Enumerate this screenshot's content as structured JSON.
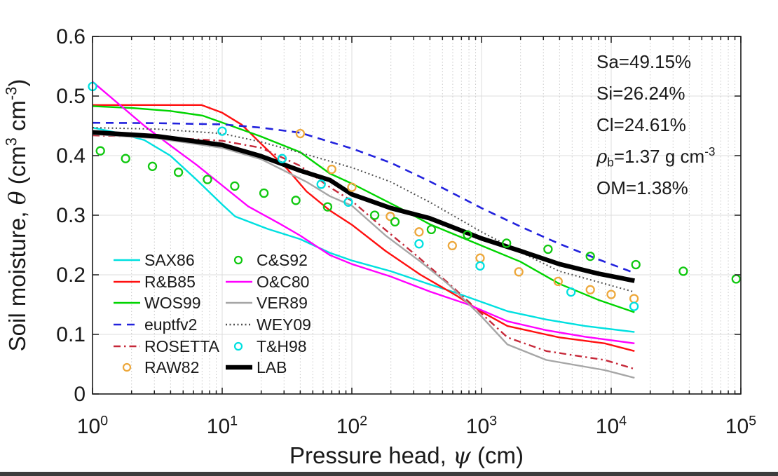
{
  "chart_data": {
    "type": "line",
    "title": "",
    "xlabel_segments": [
      {
        "t": "Pressure head, "
      },
      {
        "t": "ψ",
        "i": true
      },
      {
        "t": " (cm)"
      }
    ],
    "ylabel_segments": [
      {
        "t": "Soil moisture, "
      },
      {
        "t": "θ",
        "i": true
      },
      {
        "t": " (cm"
      },
      {
        "t": "3",
        "sup": true
      },
      {
        "t": " cm"
      },
      {
        "t": "-3",
        "sup": true
      },
      {
        "t": ")"
      }
    ],
    "x_axis": {
      "scale": "log",
      "min": 1,
      "max": 100000,
      "tick_exponents": [
        0,
        1,
        2,
        3,
        4,
        5
      ],
      "tick_base": "10",
      "minor_ticks": [
        2,
        3,
        4,
        5,
        6,
        7,
        8,
        9
      ]
    },
    "y_axis": {
      "min": 0,
      "max": 0.6,
      "ticks": [
        "0",
        "0.1",
        "0.2",
        "0.3",
        "0.4",
        "0.5",
        "0.6"
      ]
    },
    "grid": {
      "major_color": "#dcdcdc",
      "minor_color": "#c9c9c9",
      "on": true
    },
    "frame_color": "#1a1a1a",
    "annotation": {
      "lines": [
        [
          {
            "t": "Sa=49.15%"
          }
        ],
        [
          {
            "t": "Si=26.24%"
          }
        ],
        [
          {
            "t": "Cl=24.61%"
          }
        ],
        [
          {
            "t": "ρ",
            "i": true
          },
          {
            "t": "b",
            "sub": true
          },
          {
            "t": "=1.37 g cm"
          },
          {
            "t": "-3",
            "sup": true
          }
        ],
        [
          {
            "t": "OM=1.38%"
          }
        ]
      ]
    },
    "series": [
      {
        "name": "SAX86",
        "color": "#00e0e0",
        "style": "solid",
        "width": 2.4,
        "points": [
          [
            0,
            0.447
          ],
          [
            0.2,
            0.438
          ],
          [
            0.4,
            0.426
          ],
          [
            0.6,
            0.4
          ],
          [
            0.8,
            0.36
          ],
          [
            1.0,
            0.318
          ],
          [
            1.1,
            0.298
          ],
          [
            1.35,
            0.277
          ],
          [
            1.6,
            0.26
          ],
          [
            1.83,
            0.237
          ],
          [
            2.0,
            0.224
          ],
          [
            2.3,
            0.206
          ],
          [
            2.6,
            0.184
          ],
          [
            2.8,
            0.17
          ],
          [
            3.2,
            0.139
          ],
          [
            3.5,
            0.125
          ],
          [
            3.8,
            0.114
          ],
          [
            4.18,
            0.104
          ]
        ]
      },
      {
        "name": "R&B85",
        "color": "#ff1010",
        "style": "solid",
        "width": 2.4,
        "points": [
          [
            0,
            0.485
          ],
          [
            0.84,
            0.485
          ],
          [
            1.0,
            0.472
          ],
          [
            1.15,
            0.452
          ],
          [
            1.3,
            0.42
          ],
          [
            1.5,
            0.378
          ],
          [
            1.65,
            0.34
          ],
          [
            1.83,
            0.308
          ],
          [
            2.0,
            0.284
          ],
          [
            2.26,
            0.24
          ],
          [
            2.53,
            0.2
          ],
          [
            2.8,
            0.166
          ],
          [
            3.0,
            0.138
          ],
          [
            3.2,
            0.114
          ],
          [
            3.6,
            0.095
          ],
          [
            3.95,
            0.085
          ],
          [
            4.18,
            0.072
          ]
        ]
      },
      {
        "name": "WOS99",
        "color": "#00d400",
        "style": "solid",
        "width": 2.4,
        "points": [
          [
            0,
            0.483
          ],
          [
            0.3,
            0.48
          ],
          [
            0.6,
            0.475
          ],
          [
            0.85,
            0.467
          ],
          [
            1.07,
            0.45
          ],
          [
            1.3,
            0.432
          ],
          [
            1.6,
            0.406
          ],
          [
            1.83,
            0.37
          ],
          [
            2.0,
            0.353
          ],
          [
            2.37,
            0.312
          ],
          [
            2.6,
            0.285
          ],
          [
            3.0,
            0.249
          ],
          [
            3.3,
            0.222
          ],
          [
            3.6,
            0.185
          ],
          [
            3.9,
            0.158
          ],
          [
            4.18,
            0.137
          ]
        ]
      },
      {
        "name": "euptfv2",
        "color": "#2222dd",
        "style": "dashed",
        "width": 2.6,
        "points": [
          [
            0,
            0.455
          ],
          [
            0.5,
            0.4545
          ],
          [
            1.0,
            0.4525
          ],
          [
            1.3,
            0.447
          ],
          [
            1.6,
            0.4385
          ],
          [
            2.0,
            0.412
          ],
          [
            2.3,
            0.388
          ],
          [
            2.6,
            0.357
          ],
          [
            3.0,
            0.312
          ],
          [
            3.3,
            0.281
          ],
          [
            3.6,
            0.252
          ],
          [
            3.9,
            0.226
          ],
          [
            4.18,
            0.203
          ]
        ]
      },
      {
        "name": "ROSETTA",
        "color": "#c62839",
        "style": "dashdot",
        "width": 2.4,
        "points": [
          [
            0,
            0.434
          ],
          [
            0.5,
            0.431
          ],
          [
            1.0,
            0.425
          ],
          [
            1.3,
            0.413
          ],
          [
            1.6,
            0.383
          ],
          [
            1.83,
            0.347
          ],
          [
            2.0,
            0.324
          ],
          [
            2.25,
            0.277
          ],
          [
            2.5,
            0.232
          ],
          [
            2.75,
            0.185
          ],
          [
            3.0,
            0.135
          ],
          [
            3.2,
            0.095
          ],
          [
            3.5,
            0.072
          ],
          [
            3.95,
            0.057
          ],
          [
            4.18,
            0.042
          ]
        ]
      },
      {
        "name": "O&C80",
        "color": "#ff00ff",
        "style": "solid",
        "width": 2.4,
        "points": [
          [
            0,
            0.524
          ],
          [
            0.2,
            0.487
          ],
          [
            0.4,
            0.45
          ],
          [
            0.6,
            0.417
          ],
          [
            0.8,
            0.385
          ],
          [
            1.0,
            0.35
          ],
          [
            1.2,
            0.315
          ],
          [
            1.45,
            0.285
          ],
          [
            1.6,
            0.266
          ],
          [
            1.83,
            0.233
          ],
          [
            2.0,
            0.218
          ],
          [
            2.3,
            0.197
          ],
          [
            2.6,
            0.172
          ],
          [
            2.9,
            0.15
          ],
          [
            3.2,
            0.122
          ],
          [
            3.5,
            0.107
          ],
          [
            3.8,
            0.096
          ],
          [
            4.18,
            0.085
          ]
        ]
      },
      {
        "name": "VER89",
        "color": "#a6a6a6",
        "style": "solid",
        "width": 2.4,
        "points": [
          [
            0,
            0.436
          ],
          [
            0.5,
            0.429
          ],
          [
            1.0,
            0.413
          ],
          [
            1.3,
            0.394
          ],
          [
            1.65,
            0.356
          ],
          [
            1.83,
            0.332
          ],
          [
            2.0,
            0.316
          ],
          [
            2.26,
            0.266
          ],
          [
            2.53,
            0.222
          ],
          [
            2.75,
            0.183
          ],
          [
            3.0,
            0.13
          ],
          [
            3.2,
            0.083
          ],
          [
            3.5,
            0.057
          ],
          [
            3.95,
            0.04
          ],
          [
            4.18,
            0.027
          ]
        ]
      },
      {
        "name": "WEY09",
        "color": "#4d4d4d",
        "style": "dotted",
        "width": 2.0,
        "points": [
          [
            0,
            0.447
          ],
          [
            0.5,
            0.4445
          ],
          [
            1.0,
            0.437
          ],
          [
            1.3,
            0.423
          ],
          [
            1.6,
            0.405
          ],
          [
            2.0,
            0.38
          ],
          [
            2.3,
            0.356
          ],
          [
            2.6,
            0.322
          ],
          [
            3.0,
            0.272
          ],
          [
            3.3,
            0.238
          ],
          [
            3.6,
            0.206
          ],
          [
            3.9,
            0.188
          ],
          [
            4.18,
            0.171
          ]
        ]
      },
      {
        "name": "LAB",
        "color": "#000000",
        "style": "solid",
        "width": 6.5,
        "points": [
          [
            0,
            0.439
          ],
          [
            0.5,
            0.4325
          ],
          [
            1.0,
            0.418
          ],
          [
            1.3,
            0.399
          ],
          [
            1.6,
            0.375
          ],
          [
            1.83,
            0.359
          ],
          [
            2.0,
            0.335
          ],
          [
            2.3,
            0.312
          ],
          [
            2.6,
            0.295
          ],
          [
            3.0,
            0.261
          ],
          [
            3.3,
            0.24
          ],
          [
            3.6,
            0.218
          ],
          [
            3.9,
            0.202
          ],
          [
            4.18,
            0.19
          ]
        ]
      }
    ],
    "marker_series": [
      {
        "name": "RAW82",
        "color": "#eda83c",
        "points": [
          [
            40,
            0.437
          ],
          [
            70,
            0.377
          ],
          [
            100,
            0.347
          ],
          [
            198,
            0.298
          ],
          [
            330,
            0.272
          ],
          [
            595,
            0.249
          ],
          [
            975,
            0.228
          ],
          [
            1940,
            0.205
          ],
          [
            3900,
            0.189
          ],
          [
            6900,
            0.175
          ],
          [
            10000,
            0.167
          ],
          [
            15000,
            0.16
          ]
        ]
      },
      {
        "name": "C&S92",
        "color": "#0fc80f",
        "points": [
          [
            1.15,
            0.408
          ],
          [
            1.8,
            0.395
          ],
          [
            2.9,
            0.382
          ],
          [
            4.6,
            0.372
          ],
          [
            7.7,
            0.36
          ],
          [
            12.5,
            0.349
          ],
          [
            21,
            0.337
          ],
          [
            37,
            0.325
          ],
          [
            65,
            0.314
          ],
          [
            150,
            0.3
          ],
          [
            215,
            0.289
          ],
          [
            410,
            0.276
          ],
          [
            780,
            0.267
          ],
          [
            1560,
            0.253
          ],
          [
            3260,
            0.243
          ],
          [
            6900,
            0.231
          ],
          [
            15500,
            0.217
          ],
          [
            36000,
            0.206
          ],
          [
            92000,
            0.193
          ]
        ]
      },
      {
        "name": "T&H98",
        "color": "#00e0e0",
        "points": [
          [
            1,
            0.516
          ],
          [
            10,
            0.441
          ],
          [
            29,
            0.395
          ],
          [
            58,
            0.352
          ],
          [
            94,
            0.322
          ],
          [
            330,
            0.252
          ],
          [
            975,
            0.215
          ],
          [
            4900,
            0.171
          ],
          [
            15000,
            0.147
          ]
        ]
      }
    ],
    "legend": {
      "position": "lower-left-inside",
      "columns": [
        [
          {
            "label": "SAX86",
            "swatch": "line",
            "style": "solid",
            "color": "#00e0e0"
          },
          {
            "label": "R&B85",
            "swatch": "line",
            "style": "solid",
            "color": "#ff1010"
          },
          {
            "label": "WOS99",
            "swatch": "line",
            "style": "solid",
            "color": "#00d400"
          },
          {
            "label": "euptfv2",
            "swatch": "line",
            "style": "dashed",
            "color": "#2222dd"
          },
          {
            "label": "ROSETTA",
            "swatch": "line",
            "style": "dashdot",
            "color": "#c62839"
          },
          {
            "label": "RAW82",
            "swatch": "marker",
            "color": "#eda83c"
          }
        ],
        [
          {
            "label": "C&S92",
            "swatch": "marker",
            "color": "#0fc80f"
          },
          {
            "label": "O&C80",
            "swatch": "line",
            "style": "solid",
            "color": "#ff00ff"
          },
          {
            "label": "VER89",
            "swatch": "line",
            "style": "solid",
            "color": "#a6a6a6"
          },
          {
            "label": "WEY09",
            "swatch": "line",
            "style": "dotted",
            "color": "#4d4d4d"
          },
          {
            "label": "T&H98",
            "swatch": "marker",
            "color": "#00e0e0"
          },
          {
            "label": "LAB",
            "swatch": "line",
            "style": "solid",
            "color": "#000000",
            "thick": true
          }
        ]
      ]
    }
  }
}
